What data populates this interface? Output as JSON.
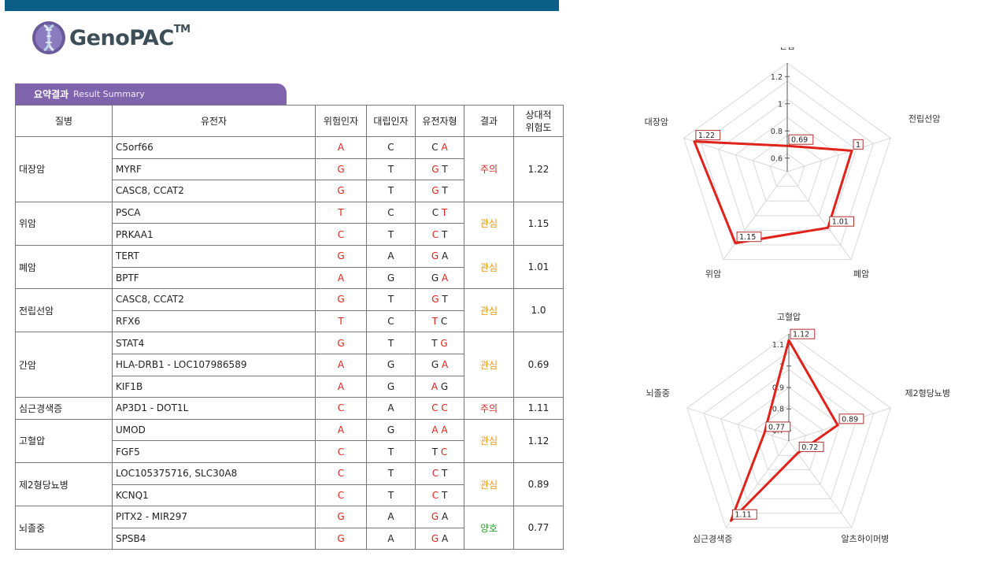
{
  "brand": {
    "name": "GenoPAC",
    "tm": "TM"
  },
  "section": {
    "title_ko": "요약결과",
    "title_en": "Result Summary"
  },
  "table": {
    "headers": {
      "disease": "질병",
      "gene": "유전자",
      "risk": "위험인자",
      "allele": "대립인자",
      "genotype": "유전자형",
      "result": "결과",
      "relative_risk_line1": "상대적",
      "relative_risk_line2": "위험도"
    },
    "groups": [
      {
        "disease": "대장암",
        "result": "주의",
        "result_color": "#e0221b",
        "rr": "1.22",
        "rows": [
          {
            "gene": "C5orf66",
            "risk": "A",
            "allele": "C",
            "g1": "C",
            "g2": "A",
            "r1": false,
            "r2": true
          },
          {
            "gene": "MYRF",
            "risk": "G",
            "allele": "T",
            "g1": "G",
            "g2": "T",
            "r1": true,
            "r2": false
          },
          {
            "gene": "CASC8, CCAT2",
            "risk": "G",
            "allele": "T",
            "g1": "G",
            "g2": "T",
            "r1": true,
            "r2": false
          }
        ]
      },
      {
        "disease": "위암",
        "result": "관심",
        "result_color": "#e8960c",
        "rr": "1.15",
        "rows": [
          {
            "gene": "PSCA",
            "risk": "T",
            "allele": "C",
            "g1": "C",
            "g2": "T",
            "r1": false,
            "r2": true
          },
          {
            "gene": "PRKAA1",
            "risk": "C",
            "allele": "T",
            "g1": "C",
            "g2": "T",
            "r1": true,
            "r2": false
          }
        ]
      },
      {
        "disease": "폐암",
        "result": "관심",
        "result_color": "#e8960c",
        "rr": "1.01",
        "rows": [
          {
            "gene": "TERT",
            "risk": "G",
            "allele": "A",
            "g1": "G",
            "g2": "A",
            "r1": true,
            "r2": false
          },
          {
            "gene": "BPTF",
            "risk": "A",
            "allele": "G",
            "g1": "G",
            "g2": "A",
            "r1": false,
            "r2": true
          }
        ]
      },
      {
        "disease": "전립선암",
        "result": "관심",
        "result_color": "#e8960c",
        "rr": "1.0",
        "rows": [
          {
            "gene": "CASC8, CCAT2",
            "risk": "G",
            "allele": "T",
            "g1": "G",
            "g2": "T",
            "r1": true,
            "r2": false
          },
          {
            "gene": "RFX6",
            "risk": "T",
            "allele": "C",
            "g1": "T",
            "g2": "C",
            "r1": true,
            "r2": false
          }
        ]
      },
      {
        "disease": "간암",
        "result": "관심",
        "result_color": "#e8960c",
        "rr": "0.69",
        "rows": [
          {
            "gene": "STAT4",
            "risk": "G",
            "allele": "T",
            "g1": "T",
            "g2": "G",
            "r1": false,
            "r2": true
          },
          {
            "gene": "HLA-DRB1 - LOC107986589",
            "risk": "A",
            "allele": "G",
            "g1": "G",
            "g2": "A",
            "r1": false,
            "r2": true
          },
          {
            "gene": "KIF1B",
            "risk": "A",
            "allele": "G",
            "g1": "A",
            "g2": "G",
            "r1": true,
            "r2": false
          }
        ]
      },
      {
        "disease": "심근경색증",
        "result": "주의",
        "result_color": "#e0221b",
        "rr": "1.11",
        "rows": [
          {
            "gene": "AP3D1 - DOT1L",
            "risk": "C",
            "allele": "A",
            "g1": "C",
            "g2": "C",
            "r1": true,
            "r2": true
          }
        ]
      },
      {
        "disease": "고혈압",
        "result": "관심",
        "result_color": "#e8960c",
        "rr": "1.12",
        "rows": [
          {
            "gene": "UMOD",
            "risk": "A",
            "allele": "G",
            "g1": "A",
            "g2": "A",
            "r1": true,
            "r2": true
          },
          {
            "gene": "FGF5",
            "risk": "C",
            "allele": "T",
            "g1": "T",
            "g2": "C",
            "r1": false,
            "r2": true
          }
        ]
      },
      {
        "disease": "제2형당뇨병",
        "result": "관심",
        "result_color": "#e8960c",
        "rr": "0.89",
        "rows": [
          {
            "gene": "LOC105375716, SLC30A8",
            "risk": "C",
            "allele": "T",
            "g1": "C",
            "g2": "T",
            "r1": true,
            "r2": false
          },
          {
            "gene": "KCNQ1",
            "risk": "C",
            "allele": "T",
            "g1": "C",
            "g2": "T",
            "r1": true,
            "r2": false
          }
        ]
      },
      {
        "disease": "뇌졸중",
        "result": "양호",
        "result_color": "#24a124",
        "rr": "0.77",
        "rows": [
          {
            "gene": "PITX2 - MIR297",
            "risk": "G",
            "allele": "A",
            "g1": "G",
            "g2": "A",
            "r1": true,
            "r2": false
          },
          {
            "gene": "SPSB4",
            "risk": "G",
            "allele": "A",
            "g1": "G",
            "g2": "A",
            "r1": true,
            "r2": false
          }
        ]
      }
    ]
  },
  "chart_data": [
    {
      "type": "radar",
      "axes": [
        "간암",
        "전립선암",
        "폐암",
        "위암",
        "대장암"
      ],
      "values": [
        0.69,
        1,
        1.01,
        1.15,
        1.22
      ],
      "value_labels": [
        "0.69",
        "1",
        "1.01",
        "1.15",
        "1.22"
      ],
      "ticks": [
        0.6,
        0.8,
        1,
        1.2
      ],
      "range": [
        0.5,
        1.3
      ],
      "line_color": "#e0221b"
    },
    {
      "type": "radar",
      "axes": [
        "고혈압",
        "제2형당뇨병",
        "알츠하이머병",
        "심근경색증",
        "뇌졸중"
      ],
      "values": [
        1.12,
        0.89,
        0.72,
        1.11,
        0.77
      ],
      "value_labels": [
        "1.12",
        "0.89",
        "0.72",
        "1.11",
        "0.77"
      ],
      "ticks": [
        0.7,
        0.8,
        0.9,
        1,
        1.1
      ],
      "range": [
        0.65,
        1.15
      ],
      "line_color": "#e0221b"
    }
  ]
}
